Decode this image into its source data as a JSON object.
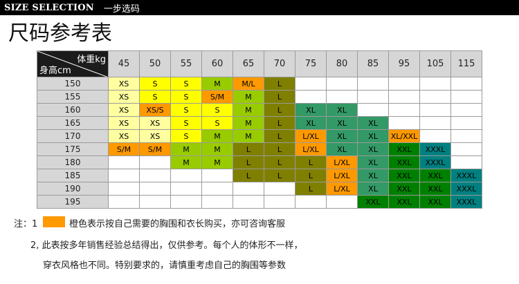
{
  "header": {
    "en": "SIZE SELECTION",
    "cn": "一步选码"
  },
  "title": "尺码参考表",
  "table": {
    "corner_weight": "体重kg",
    "corner_height": "身高cm",
    "weights": [
      "45",
      "50",
      "55",
      "60",
      "65",
      "70",
      "75",
      "80",
      "85",
      "95",
      "105",
      "115"
    ],
    "rows": [
      {
        "height": "150",
        "cells": [
          [
            "XS",
            "pale"
          ],
          [
            "S",
            "yel"
          ],
          [
            "S",
            "yel"
          ],
          [
            "M",
            "lime"
          ],
          [
            "M/L",
            "orange"
          ],
          [
            "L",
            "olive"
          ],
          [
            "",
            ""
          ],
          [
            "",
            ""
          ],
          [
            "",
            ""
          ],
          [
            "",
            ""
          ],
          [
            "",
            ""
          ],
          [
            "",
            ""
          ]
        ]
      },
      {
        "height": "155",
        "cells": [
          [
            "XS",
            "pale"
          ],
          [
            "S",
            "yel"
          ],
          [
            "S",
            "yel"
          ],
          [
            "S/M",
            "orange"
          ],
          [
            "M",
            "lime"
          ],
          [
            "L",
            "olive"
          ],
          [
            "",
            ""
          ],
          [
            "",
            ""
          ],
          [
            "",
            ""
          ],
          [
            "",
            ""
          ],
          [
            "",
            ""
          ],
          [
            "",
            ""
          ]
        ]
      },
      {
        "height": "160",
        "cells": [
          [
            "XS",
            "pale"
          ],
          [
            "XS/S",
            "orange"
          ],
          [
            "S",
            "yel"
          ],
          [
            "S",
            "yel"
          ],
          [
            "M",
            "lime"
          ],
          [
            "L",
            "olive"
          ],
          [
            "XL",
            "sea"
          ],
          [
            "XL",
            "sea"
          ],
          [
            "",
            ""
          ],
          [
            "",
            ""
          ],
          [
            "",
            ""
          ],
          [
            "",
            ""
          ]
        ]
      },
      {
        "height": "165",
        "cells": [
          [
            "XS",
            "pale"
          ],
          [
            "XS",
            "pale"
          ],
          [
            "S",
            "yel"
          ],
          [
            "S",
            "yel"
          ],
          [
            "M",
            "lime"
          ],
          [
            "L",
            "olive"
          ],
          [
            "XL",
            "sea"
          ],
          [
            "XL",
            "sea"
          ],
          [
            "XL",
            "sea"
          ],
          [
            "",
            ""
          ],
          [
            "",
            ""
          ],
          [
            "",
            ""
          ]
        ]
      },
      {
        "height": "170",
        "cells": [
          [
            "XS",
            "pale"
          ],
          [
            "XS",
            "pale"
          ],
          [
            "S",
            "yel"
          ],
          [
            "M",
            "lime"
          ],
          [
            "M",
            "lime"
          ],
          [
            "L",
            "olive"
          ],
          [
            "L/XL",
            "orange"
          ],
          [
            "XL",
            "sea"
          ],
          [
            "XL",
            "sea"
          ],
          [
            "XL/XXL",
            "orange"
          ],
          [
            "",
            ""
          ],
          [
            "",
            ""
          ]
        ]
      },
      {
        "height": "175",
        "cells": [
          [
            "S/M",
            "orange"
          ],
          [
            "S/M",
            "orange"
          ],
          [
            "M",
            "lime"
          ],
          [
            "M",
            "lime"
          ],
          [
            "L",
            "olive"
          ],
          [
            "L",
            "olive"
          ],
          [
            "L/XL",
            "orange"
          ],
          [
            "XL",
            "sea"
          ],
          [
            "XL",
            "sea"
          ],
          [
            "XXL",
            "green"
          ],
          [
            "XXXL",
            "teal"
          ],
          [
            "",
            ""
          ]
        ]
      },
      {
        "height": "180",
        "cells": [
          [
            "",
            ""
          ],
          [
            "",
            ""
          ],
          [
            "M",
            "lime"
          ],
          [
            "M",
            "lime"
          ],
          [
            "L",
            "olive"
          ],
          [
            "L",
            "olive"
          ],
          [
            "L",
            "olive"
          ],
          [
            "L/XL",
            "orange"
          ],
          [
            "XL",
            "sea"
          ],
          [
            "XXL",
            "green"
          ],
          [
            "XXXL",
            "teal"
          ],
          [
            "",
            ""
          ]
        ]
      },
      {
        "height": "185",
        "cells": [
          [
            "",
            ""
          ],
          [
            "",
            ""
          ],
          [
            "",
            ""
          ],
          [
            "",
            ""
          ],
          [
            "L",
            "olive"
          ],
          [
            "L",
            "olive"
          ],
          [
            "L",
            "olive"
          ],
          [
            "L/XL",
            "orange"
          ],
          [
            "XL",
            "sea"
          ],
          [
            "XXL",
            "green"
          ],
          [
            "XXL",
            "green"
          ],
          [
            "XXXL",
            "teal"
          ]
        ]
      },
      {
        "height": "190",
        "cells": [
          [
            "",
            ""
          ],
          [
            "",
            ""
          ],
          [
            "",
            ""
          ],
          [
            "",
            ""
          ],
          [
            "",
            ""
          ],
          [
            "",
            ""
          ],
          [
            "L",
            "olive"
          ],
          [
            "L/XL",
            "orange"
          ],
          [
            "XL",
            "sea"
          ],
          [
            "XXL",
            "green"
          ],
          [
            "XXL",
            "green"
          ],
          [
            "XXXL",
            "teal"
          ]
        ]
      },
      {
        "height": "195",
        "cells": [
          [
            "",
            ""
          ],
          [
            "",
            ""
          ],
          [
            "",
            ""
          ],
          [
            "",
            ""
          ],
          [
            "",
            ""
          ],
          [
            "",
            ""
          ],
          [
            "",
            ""
          ],
          [
            "",
            ""
          ],
          [
            "XXL",
            "green"
          ],
          [
            "XXL",
            "green"
          ],
          [
            "XXL",
            "green"
          ],
          [
            "XXXL",
            "teal"
          ]
        ]
      }
    ]
  },
  "notes": {
    "label": "注：1",
    "line1": "橙色表示按自己需要的胸围和衣长购买，亦可咨询客服",
    "line2": "2, 此表按多年销售经验总结得出，仅供参考。每个人的体形不一样，",
    "line3": "穿衣风格也不同。特别要求的，请慎重考虑自己的胸围等参数"
  },
  "colors": {
    "orange_swatch": "#ff9900",
    "header_bg": "#000000"
  }
}
